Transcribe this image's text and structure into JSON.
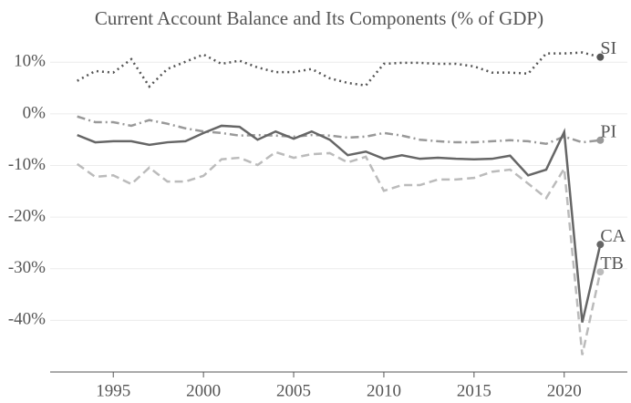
{
  "chart_data": {
    "type": "line",
    "title": "Current Account Balance and Its Components (% of GDP)",
    "x": [
      1993,
      1994,
      1995,
      1996,
      1997,
      1998,
      1999,
      2000,
      2001,
      2002,
      2003,
      2004,
      2005,
      2006,
      2007,
      2008,
      2009,
      2010,
      2011,
      2012,
      2013,
      2014,
      2015,
      2016,
      2017,
      2018,
      2019,
      2020,
      2021,
      2022
    ],
    "xlim": [
      1991.5,
      2023.5
    ],
    "xticks": [
      1995,
      2000,
      2005,
      2010,
      2015,
      2020
    ],
    "ylim": [
      -50,
      15
    ],
    "yticks": [
      {
        "value": 10,
        "label": "10%"
      },
      {
        "value": 0,
        "label": "0%"
      },
      {
        "value": -10,
        "label": "-10%"
      },
      {
        "value": -20,
        "label": "-20%"
      },
      {
        "value": -30,
        "label": "-30%"
      },
      {
        "value": -40,
        "label": "-40%"
      }
    ],
    "grid": true,
    "series": [
      {
        "name": "SI",
        "color": "#555555",
        "style": "dotted",
        "values": [
          6.4,
          8.3,
          8.0,
          10.6,
          5.3,
          8.7,
          10.1,
          11.5,
          9.7,
          10.3,
          9.0,
          8.1,
          8.1,
          8.7,
          6.9,
          6.0,
          5.5,
          9.7,
          9.9,
          9.9,
          9.7,
          9.7,
          9.2,
          8.0,
          8.0,
          7.8,
          11.7,
          11.7,
          11.9,
          11.0
        ]
      },
      {
        "name": "PI",
        "color": "#999999",
        "style": "dashdot",
        "values": [
          -0.5,
          -1.6,
          -1.6,
          -2.3,
          -1.2,
          -1.9,
          -2.8,
          -3.4,
          -3.7,
          -4.2,
          -4.1,
          -4.2,
          -4.4,
          -4.1,
          -4.2,
          -4.6,
          -4.4,
          -3.7,
          -4.2,
          -5.0,
          -5.3,
          -5.5,
          -5.5,
          -5.3,
          -5.1,
          -5.3,
          -5.8,
          -4.4,
          -5.5,
          -5.1
        ]
      },
      {
        "name": "CA",
        "color": "#666666",
        "style": "solid",
        "values": [
          -4.1,
          -5.5,
          -5.3,
          -5.3,
          -6.0,
          -5.5,
          -5.3,
          -3.7,
          -2.3,
          -2.5,
          -5.0,
          -3.4,
          -4.8,
          -3.4,
          -5.0,
          -8.0,
          -7.3,
          -8.7,
          -8.0,
          -8.7,
          -8.5,
          -8.7,
          -8.8,
          -8.7,
          -8.1,
          -11.9,
          -10.8,
          -3.5,
          -40.4,
          -25.3
        ]
      },
      {
        "name": "TB",
        "color": "#bbbbbb",
        "style": "dashed",
        "values": [
          -9.7,
          -12.2,
          -11.9,
          -13.6,
          -10.4,
          -13.1,
          -13.1,
          -12.0,
          -8.8,
          -8.5,
          -9.9,
          -7.4,
          -8.5,
          -7.8,
          -7.6,
          -9.4,
          -8.3,
          -14.9,
          -13.8,
          -13.8,
          -12.7,
          -12.7,
          -12.4,
          -11.2,
          -10.8,
          -13.5,
          -16.3,
          -10.6,
          -46.7,
          -30.6
        ]
      }
    ]
  }
}
